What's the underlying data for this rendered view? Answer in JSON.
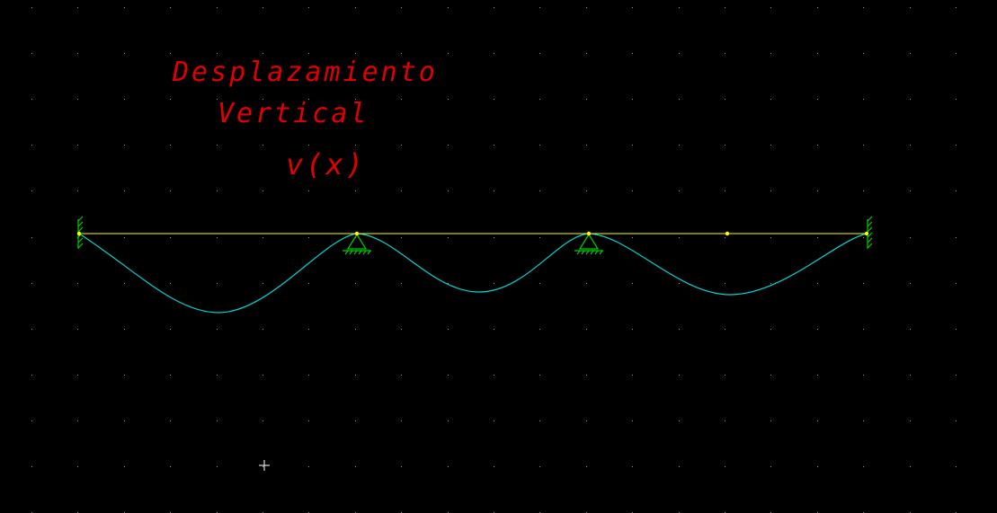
{
  "annotation": {
    "line1": "Desplazamiento",
    "line2": "Vertical",
    "line3": "v(x)"
  },
  "model": {
    "span_count": 3,
    "supports": [
      "fixed",
      "pinned",
      "pinned",
      "fixed"
    ],
    "has_intermediate_joint": true
  },
  "colors": {
    "background": "#000000",
    "grid_dots": "#9a9a9a",
    "beam": "#ffff00",
    "joints": "#ffff00",
    "supports": "#00d000",
    "deflected_shape": "#00d4d4",
    "annotation": "#e00000",
    "cursor": "#ffffff"
  },
  "icons": {
    "cursor": "crosshair-cursor-icon"
  }
}
